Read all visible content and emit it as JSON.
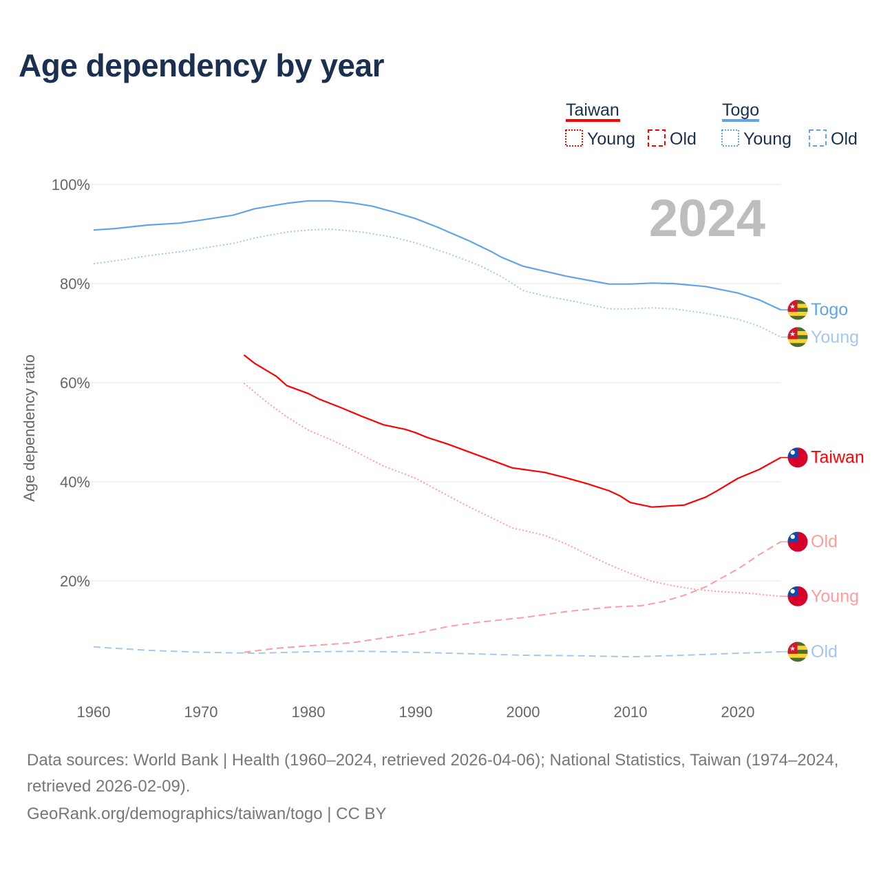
{
  "title": "Age dependency by year",
  "legend": {
    "groups": [
      {
        "name": "Taiwan",
        "color": "#ff0000",
        "items": [
          "Young",
          "Old"
        ]
      },
      {
        "name": "Togo",
        "color": "#5fa4ea",
        "items": [
          "Young",
          "Old"
        ]
      }
    ]
  },
  "year_label": "2024",
  "footer": {
    "sources": "Data sources: World Bank | Health (1960–2024, retrieved 2026-04-06); National Statistics, Taiwan (1974–2024, retrieved 2026-02-09).",
    "link": "GeoRank.org/demographics/taiwan/togo | CC BY"
  },
  "chart_data": {
    "type": "line",
    "title": "Age dependency by year",
    "xlabel": "",
    "ylabel": "Age dependency ratio",
    "xlim": [
      1960,
      2024
    ],
    "ylim": [
      0,
      100
    ],
    "xticks": [
      "1960",
      "1970",
      "1980",
      "1990",
      "2000",
      "2010",
      "2020"
    ],
    "yticks": [
      "20%",
      "40%",
      "60%",
      "80%",
      "100%"
    ],
    "ytick_values": [
      20,
      40,
      60,
      80,
      100
    ],
    "xtick_values": [
      1960,
      1970,
      1980,
      1990,
      2000,
      2010,
      2020
    ],
    "grid": true,
    "legend_position": "top-right",
    "series": [
      {
        "name": "Togo",
        "end_label": "Togo",
        "country": "togo",
        "color": "#5fa4ea",
        "style": "solid",
        "x": [
          1960,
          1962,
          1965,
          1968,
          1970,
          1973,
          1975,
          1978,
          1980,
          1982,
          1984,
          1986,
          1988,
          1990,
          1992,
          1995,
          1997,
          1998,
          2000,
          2002,
          2004,
          2006,
          2008,
          2010,
          2012,
          2014,
          2017,
          2020,
          2022,
          2024
        ],
        "y": [
          90.8,
          91.1,
          91.8,
          92.2,
          92.8,
          93.8,
          95.1,
          96.2,
          96.7,
          96.7,
          96.3,
          95.6,
          94.4,
          93.1,
          91.4,
          88.6,
          86.5,
          85.3,
          83.5,
          82.5,
          81.5,
          80.7,
          79.9,
          79.9,
          80.1,
          80.0,
          79.4,
          78.1,
          76.7,
          74.7
        ]
      },
      {
        "name": "Togo Young",
        "end_label": "Young",
        "country": "togo",
        "color": "#a3c8f0",
        "style": "dotted",
        "x": [
          1960,
          1963,
          1965,
          1968,
          1970,
          1973,
          1975,
          1978,
          1980,
          1982,
          1985,
          1988,
          1990,
          1993,
          1996,
          1998,
          2000,
          2002,
          2005,
          2008,
          2010,
          2012,
          2014,
          2017,
          2020,
          2022,
          2024
        ],
        "y": [
          84.0,
          84.9,
          85.6,
          86.4,
          87.1,
          88.1,
          89.2,
          90.4,
          90.8,
          91.0,
          90.4,
          89.3,
          88.2,
          86.1,
          83.6,
          81.4,
          78.6,
          77.5,
          76.3,
          74.9,
          74.9,
          75.1,
          74.9,
          74.0,
          72.8,
          71.4,
          69.2
        ]
      },
      {
        "name": "Taiwan",
        "end_label": "Taiwan",
        "country": "taiwan",
        "color": "#ff0000",
        "style": "solid",
        "x": [
          1974,
          1975,
          1977,
          1978,
          1980,
          1981,
          1983,
          1985,
          1987,
          1989,
          1990,
          1991,
          1993,
          1995,
          1997,
          1999,
          2002,
          2004,
          2006,
          2008,
          2009,
          2010,
          2012,
          2015,
          2017,
          2018,
          2020,
          2022,
          2024
        ],
        "y": [
          65.6,
          63.9,
          61.3,
          59.4,
          57.8,
          56.7,
          55.0,
          53.2,
          51.5,
          50.6,
          49.9,
          49.0,
          47.6,
          46.0,
          44.4,
          42.8,
          41.9,
          40.8,
          39.6,
          38.2,
          37.2,
          35.8,
          34.9,
          35.3,
          36.9,
          38.1,
          40.7,
          42.5,
          44.9
        ]
      },
      {
        "name": "Taiwan Old",
        "end_label": "Old",
        "country": "taiwan",
        "color": "#ff9c9c",
        "style": "dashed",
        "x": [
          1974,
          1977,
          1980,
          1984,
          1987,
          1990,
          1993,
          1996,
          2000,
          2004,
          2008,
          2011,
          2013,
          2015,
          2017,
          2020,
          2022,
          2024
        ],
        "y": [
          5.6,
          6.4,
          6.9,
          7.5,
          8.5,
          9.4,
          10.8,
          11.7,
          12.6,
          13.8,
          14.7,
          15.0,
          15.8,
          17.1,
          18.8,
          22.4,
          25.3,
          27.9
        ]
      },
      {
        "name": "Taiwan Young",
        "end_label": "Young",
        "country": "taiwan",
        "color": "#ff9c9c",
        "style": "dotted",
        "x": [
          1974,
          1976,
          1978,
          1980,
          1982,
          1983,
          1985,
          1987,
          1990,
          1993,
          1995,
          1997,
          1999,
          2002,
          2004,
          2006,
          2008,
          2010,
          2012,
          2014,
          2016,
          2018,
          2021,
          2024
        ],
        "y": [
          59.9,
          56.3,
          53.1,
          50.4,
          48.6,
          47.6,
          45.4,
          43.2,
          40.7,
          37.2,
          34.9,
          32.8,
          30.7,
          29.2,
          27.5,
          25.3,
          23.3,
          21.5,
          19.9,
          19.0,
          18.3,
          17.9,
          17.5,
          16.9
        ]
      },
      {
        "name": "Togo Old",
        "end_label": "Old",
        "country": "togo",
        "color": "#a3c8f0",
        "style": "dashed",
        "x": [
          1960,
          1965,
          1970,
          1975,
          1980,
          1985,
          1990,
          1995,
          2000,
          2005,
          2010,
          2015,
          2020,
          2024
        ],
        "y": [
          6.7,
          6.0,
          5.6,
          5.4,
          5.7,
          5.8,
          5.6,
          5.3,
          5.0,
          4.9,
          4.7,
          5.0,
          5.4,
          5.7
        ]
      }
    ]
  }
}
